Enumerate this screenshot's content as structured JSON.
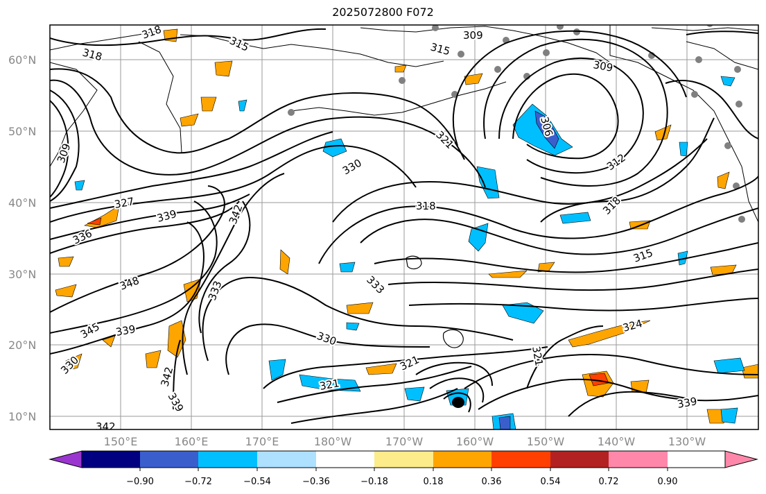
{
  "title": "2025072800 F072",
  "lat_labels": [
    "60°N",
    "50°N",
    "40°N",
    "30°N",
    "20°N",
    "10°N"
  ],
  "lon_labels": [
    "150°E",
    "160°E",
    "170°E",
    "180°W",
    "170°W",
    "160°W",
    "150°W",
    "140°W",
    "130°W"
  ],
  "colorbar": {
    "ticks": [
      "−0.90",
      "−0.72",
      "−0.54",
      "−0.36",
      "−0.18",
      "0.18",
      "0.36",
      "0.54",
      "0.72",
      "0.90"
    ],
    "colors": [
      "#9b35d0",
      "#000080",
      "#3a5fcd",
      "#00bfff",
      "#aee0ff",
      "#ffffff",
      "#fcec8a",
      "#ffa500",
      "#ff4000",
      "#b22222",
      "#ff88aa"
    ]
  },
  "contour_labels": [
    "318",
    "318",
    "315",
    "309",
    "315",
    "309",
    "321",
    "306",
    "309",
    "312",
    "330",
    "318",
    "318",
    "315",
    "327",
    "339",
    "336",
    "342",
    "348",
    "333",
    "333",
    "345",
    "339",
    "330",
    "342",
    "339",
    "321",
    "321",
    "321",
    "324",
    "339",
    "342",
    "330"
  ]
}
